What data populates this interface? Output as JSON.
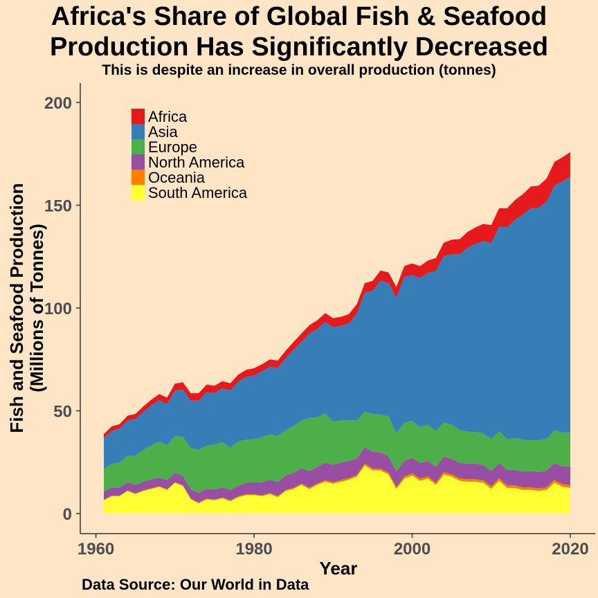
{
  "title_line1": "Africa's Share of Global Fish & Seafood",
  "title_line2": "Production Has Significantly Decreased",
  "subtitle": "This is despite an increase in overall production (tonnes)",
  "source": "Data Source: Our World in Data",
  "chart_data": {
    "type": "area",
    "stacked": true,
    "xlabel": "Year",
    "ylabel_lines": [
      "Fish and Seafood Production",
      "(Millions of Tonnes)"
    ],
    "xlim": [
      1961,
      2020
    ],
    "ylim": [
      0,
      200
    ],
    "xticks": [
      1960,
      1980,
      2000,
      2020
    ],
    "yticks": [
      0,
      50,
      100,
      150,
      200
    ],
    "grid": false,
    "legend_position": "top-left",
    "x": [
      1961,
      1962,
      1963,
      1964,
      1965,
      1966,
      1967,
      1968,
      1969,
      1970,
      1971,
      1972,
      1973,
      1974,
      1975,
      1976,
      1977,
      1978,
      1979,
      1980,
      1981,
      1982,
      1983,
      1984,
      1985,
      1986,
      1987,
      1988,
      1989,
      1990,
      1991,
      1992,
      1993,
      1994,
      1995,
      1996,
      1997,
      1998,
      1999,
      2000,
      2001,
      2002,
      2003,
      2004,
      2005,
      2006,
      2007,
      2008,
      2009,
      2010,
      2011,
      2012,
      2013,
      2014,
      2015,
      2016,
      2017,
      2018,
      2019,
      2020
    ],
    "series": [
      {
        "name": "South America",
        "color": "#FFFF33",
        "values": [
          6.5,
          8.5,
          8.5,
          11,
          9.5,
          11,
          12,
          13,
          11.5,
          15,
          13.5,
          7,
          5,
          7,
          6.5,
          7.5,
          6,
          8,
          9,
          9,
          8.5,
          9.5,
          8,
          11,
          12,
          14,
          12,
          14,
          15.5,
          14.5,
          15.5,
          16.5,
          18,
          23.5,
          21,
          21,
          19,
          12,
          17,
          18.5,
          16,
          17,
          14,
          19,
          18,
          16,
          15.5,
          15.5,
          15,
          12,
          16,
          12.5,
          12.5,
          11.5,
          11.5,
          11,
          11.5,
          15,
          13,
          12.5
        ]
      },
      {
        "name": "Oceania",
        "color": "#FF7F00",
        "values": [
          0.2,
          0.2,
          0.2,
          0.2,
          0.3,
          0.3,
          0.3,
          0.3,
          0.3,
          0.3,
          0.3,
          0.3,
          0.3,
          0.3,
          0.3,
          0.3,
          0.4,
          0.4,
          0.4,
          0.4,
          0.4,
          0.5,
          0.5,
          0.5,
          0.5,
          0.6,
          0.6,
          0.6,
          0.7,
          0.7,
          0.8,
          0.8,
          0.8,
          0.9,
          0.9,
          0.9,
          1.0,
          1.0,
          1.0,
          1.1,
          1.1,
          1.1,
          1.1,
          1.1,
          1.1,
          1.1,
          1.2,
          1.2,
          1.2,
          1.2,
          1.2,
          1.2,
          1.2,
          1.2,
          1.3,
          1.3,
          1.3,
          1.3,
          1.3,
          1.3
        ]
      },
      {
        "name": "North America",
        "color": "#984EA3",
        "values": [
          4,
          4,
          4,
          4,
          4.2,
          4.2,
          4.3,
          4.3,
          4.4,
          4.5,
          4.5,
          4.6,
          4.7,
          4.8,
          4.8,
          5,
          5,
          5.2,
          5.5,
          5.8,
          6.2,
          6.5,
          6.8,
          7,
          7.2,
          7.5,
          8,
          8.2,
          8.5,
          8.5,
          8.5,
          8.2,
          8,
          8,
          8,
          7.8,
          7.8,
          7.5,
          7.5,
          7.5,
          7.5,
          7.5,
          7.5,
          7.6,
          7.6,
          7.6,
          7.6,
          7.5,
          7.4,
          7.4,
          7.4,
          7.5,
          7.6,
          7.7,
          7.8,
          7.9,
          8,
          8.3,
          8.7,
          9
        ]
      },
      {
        "name": "Europe",
        "color": "#4DAF4A",
        "values": [
          11,
          11.5,
          12,
          13,
          14,
          15.5,
          16.5,
          17.5,
          17,
          18,
          19,
          20,
          21,
          21,
          22,
          22,
          20.5,
          21.5,
          21,
          21,
          22,
          22,
          22.5,
          22,
          23,
          23,
          26,
          24,
          24,
          21,
          20.5,
          20,
          18.5,
          17,
          18.5,
          18.5,
          19.5,
          18.5,
          18.5,
          18,
          17.5,
          17.5,
          17.5,
          16.5,
          16.5,
          16,
          15.5,
          15.5,
          15.5,
          15.5,
          15.5,
          15,
          15.5,
          15.5,
          15,
          15.5,
          15.5,
          16,
          16.5,
          16.5
        ]
      },
      {
        "name": "Asia",
        "color": "#377EB8",
        "values": [
          15,
          16,
          16.5,
          17,
          18,
          18.5,
          19.5,
          20,
          20,
          22,
          23,
          23,
          24,
          26,
          25,
          26,
          28,
          29,
          30.5,
          31,
          32,
          33,
          33,
          35,
          37,
          38.5,
          41,
          43,
          44.5,
          46,
          46,
          47,
          52,
          58,
          60,
          65,
          65,
          66,
          71,
          71,
          72.5,
          74,
          78,
          81,
          83,
          85.5,
          89.5,
          91.5,
          93.5,
          95.5,
          99.5,
          103,
          106,
          109.5,
          113,
          113,
          115.5,
          119,
          122,
          124.5
        ]
      },
      {
        "name": "Africa",
        "color": "#E41A1C",
        "values": [
          2,
          2.2,
          2.3,
          2.4,
          2.5,
          2.6,
          2.8,
          3,
          3.2,
          3.4,
          3.6,
          3.6,
          3.6,
          3.6,
          3.6,
          3.6,
          3.5,
          3.5,
          3.5,
          3.5,
          3.5,
          3.5,
          3.6,
          3.7,
          3.8,
          4,
          4,
          4.2,
          4.3,
          4.3,
          4.4,
          4.5,
          4.6,
          4.7,
          4.8,
          5,
          5,
          5.2,
          5.4,
          5.6,
          5.8,
          6,
          6.2,
          6.6,
          7,
          7.3,
          7.7,
          8,
          8.3,
          8.7,
          9,
          9.3,
          9.7,
          10,
          10.5,
          10.8,
          11.2,
          11.5,
          11.8,
          12
        ]
      }
    ]
  }
}
